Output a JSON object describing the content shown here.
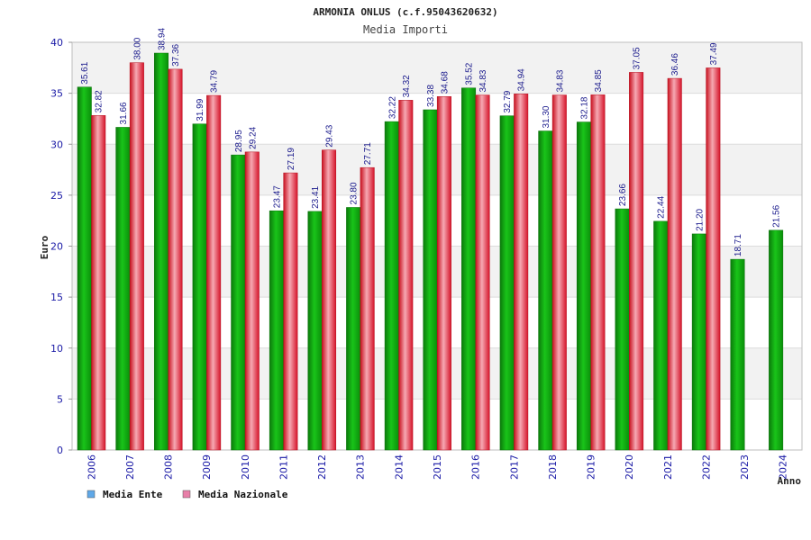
{
  "chart_data": {
    "type": "bar",
    "title": "ARMONIA ONLUS (c.f.95043620632)",
    "subtitle": "Media Importi",
    "xlabel": "Anno",
    "ylabel": "Euro",
    "ylim": [
      0,
      40
    ],
    "yticks": [
      "0",
      "5",
      "10",
      "15",
      "20",
      "25",
      "30",
      "35",
      "40"
    ],
    "grid": true,
    "legend_position": "bottom-left",
    "categories": [
      "2006",
      "2007",
      "2008",
      "2009",
      "2010",
      "2011",
      "2012",
      "2013",
      "2014",
      "2015",
      "2016",
      "2017",
      "2018",
      "2019",
      "2020",
      "2021",
      "2022",
      "2023",
      "2024"
    ],
    "series": [
      {
        "name": "Media Ente",
        "legend_color": "#5fa8e8",
        "bar_color": "#0aa80a",
        "values": [
          35.61,
          31.66,
          38.94,
          31.99,
          28.95,
          23.47,
          23.41,
          23.8,
          32.22,
          33.38,
          35.52,
          32.79,
          31.3,
          32.18,
          23.66,
          22.44,
          21.2,
          18.71,
          21.56
        ],
        "labels": [
          "35.61",
          "31.66",
          "38.94",
          "31.99",
          "28.95",
          "23.47",
          "23.41",
          "23.80",
          "32.22",
          "33.38",
          "35.52",
          "32.79",
          "31.30",
          "32.18",
          "23.66",
          "22.44",
          "21.20",
          "18.71",
          "21.56"
        ]
      },
      {
        "name": "Media Nazionale",
        "legend_color": "#e87fa8",
        "bar_color": "#e8182a",
        "values": [
          32.82,
          38.0,
          37.36,
          34.79,
          29.24,
          27.19,
          29.43,
          27.71,
          34.32,
          34.68,
          34.83,
          34.94,
          34.83,
          34.85,
          37.05,
          36.46,
          37.49,
          null,
          null
        ],
        "labels": [
          "32.82",
          "38.00",
          "37.36",
          "34.79",
          "29.24",
          "27.19",
          "29.43",
          "27.71",
          "34.32",
          "34.68",
          "34.83",
          "34.94",
          "34.83",
          "34.85",
          "37.05",
          "36.46",
          "37.49",
          null,
          null
        ]
      }
    ]
  }
}
